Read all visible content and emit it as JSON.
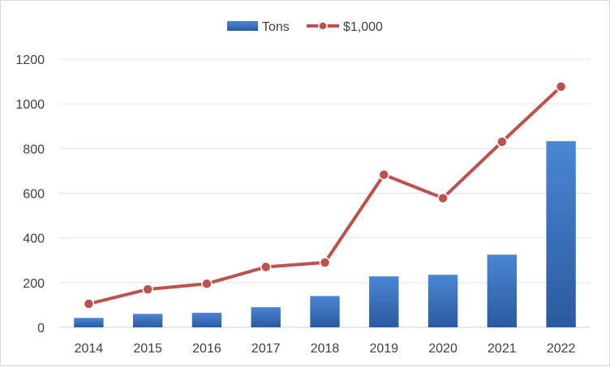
{
  "chart_data": {
    "type": "bar",
    "categories": [
      "2014",
      "2015",
      "2016",
      "2017",
      "2018",
      "2019",
      "2020",
      "2021",
      "2022"
    ],
    "series": [
      {
        "name": "Tons",
        "type": "bar",
        "color": "#3A75C4",
        "values": [
          42,
          60,
          65,
          90,
          140,
          228,
          235,
          325,
          833
        ]
      },
      {
        "name": "$1,000",
        "type": "line",
        "color": "#C0504D",
        "values": [
          105,
          170,
          195,
          270,
          290,
          683,
          578,
          830,
          1077
        ]
      }
    ],
    "ylim": [
      0,
      1200
    ],
    "yticks": [
      "0",
      "200",
      "400",
      "600",
      "800",
      "1000",
      "1200"
    ],
    "grid": true,
    "legend_position": "top-center",
    "title": "",
    "xlabel": "",
    "ylabel": ""
  }
}
